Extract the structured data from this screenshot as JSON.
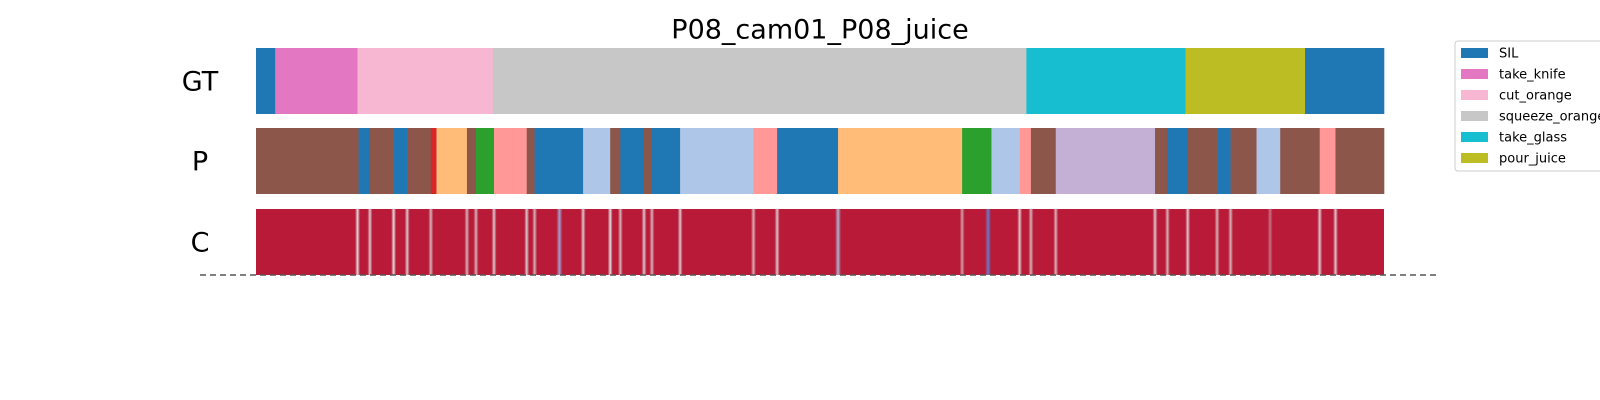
{
  "chart_data": {
    "type": "segmentation",
    "title": "P08_cam01_P08_juice",
    "xlim": [
      0,
      100
    ],
    "legend": [
      {
        "name": "SIL",
        "color": "#1f77b4"
      },
      {
        "name": "take_knife",
        "color": "#e377c2"
      },
      {
        "name": "cut_orange",
        "color": "#f7b6d2"
      },
      {
        "name": "squeeze_orange",
        "color": "#c7c7c7"
      },
      {
        "name": "take_glass",
        "color": "#17becf"
      },
      {
        "name": "pour_juice",
        "color": "#bcbd22"
      }
    ],
    "rows": [
      {
        "label": "GT",
        "segments": [
          {
            "start": 0,
            "end": 1.7,
            "color": "#1f77b4"
          },
          {
            "start": 1.7,
            "end": 9.0,
            "color": "#e377c2"
          },
          {
            "start": 9.0,
            "end": 21.0,
            "color": "#f7b6d2"
          },
          {
            "start": 21.0,
            "end": 68.3,
            "color": "#c7c7c7"
          },
          {
            "start": 68.3,
            "end": 82.4,
            "color": "#17becf"
          },
          {
            "start": 82.4,
            "end": 93.0,
            "color": "#bcbd22"
          },
          {
            "start": 93.0,
            "end": 100,
            "color": "#1f77b4"
          }
        ]
      },
      {
        "label": "P",
        "segments": [
          {
            "start": 0,
            "end": 9.1,
            "color": "#8c564b"
          },
          {
            "start": 9.1,
            "end": 10.1,
            "color": "#1f77b4"
          },
          {
            "start": 10.1,
            "end": 12.2,
            "color": "#8c564b"
          },
          {
            "start": 12.2,
            "end": 13.4,
            "color": "#1f77b4"
          },
          {
            "start": 13.4,
            "end": 15.5,
            "color": "#8c564b"
          },
          {
            "start": 15.5,
            "end": 16.0,
            "color": "#d62728"
          },
          {
            "start": 16.0,
            "end": 18.7,
            "color": "#ffbb78"
          },
          {
            "start": 18.7,
            "end": 19.5,
            "color": "#8c564b"
          },
          {
            "start": 19.5,
            "end": 21.1,
            "color": "#2ca02c"
          },
          {
            "start": 21.1,
            "end": 24.0,
            "color": "#ff9896"
          },
          {
            "start": 24.0,
            "end": 24.7,
            "color": "#8c564b"
          },
          {
            "start": 24.7,
            "end": 29.0,
            "color": "#1f77b4"
          },
          {
            "start": 29.0,
            "end": 31.4,
            "color": "#aec7e8"
          },
          {
            "start": 31.4,
            "end": 32.3,
            "color": "#8c564b"
          },
          {
            "start": 32.3,
            "end": 34.4,
            "color": "#1f77b4"
          },
          {
            "start": 34.4,
            "end": 35.1,
            "color": "#8c564b"
          },
          {
            "start": 35.1,
            "end": 37.6,
            "color": "#1f77b4"
          },
          {
            "start": 37.6,
            "end": 44.1,
            "color": "#aec7e8"
          },
          {
            "start": 44.1,
            "end": 46.2,
            "color": "#ff9896"
          },
          {
            "start": 46.2,
            "end": 51.6,
            "color": "#1f77b4"
          },
          {
            "start": 51.6,
            "end": 62.6,
            "color": "#ffbb78"
          },
          {
            "start": 62.6,
            "end": 65.2,
            "color": "#2ca02c"
          },
          {
            "start": 65.2,
            "end": 67.7,
            "color": "#aec7e8"
          },
          {
            "start": 67.7,
            "end": 68.7,
            "color": "#ff9896"
          },
          {
            "start": 68.7,
            "end": 70.9,
            "color": "#8c564b"
          },
          {
            "start": 70.9,
            "end": 79.7,
            "color": "#c5b0d5"
          },
          {
            "start": 79.7,
            "end": 80.8,
            "color": "#8c564b"
          },
          {
            "start": 80.8,
            "end": 82.6,
            "color": "#1f77b4"
          },
          {
            "start": 82.6,
            "end": 85.2,
            "color": "#8c564b"
          },
          {
            "start": 85.2,
            "end": 86.4,
            "color": "#1f77b4"
          },
          {
            "start": 86.4,
            "end": 88.7,
            "color": "#8c564b"
          },
          {
            "start": 88.7,
            "end": 90.8,
            "color": "#aec7e8"
          },
          {
            "start": 90.8,
            "end": 94.3,
            "color": "#8c564b"
          },
          {
            "start": 94.3,
            "end": 95.7,
            "color": "#ff9896"
          },
          {
            "start": 95.7,
            "end": 100,
            "color": "#8c564b"
          }
        ]
      },
      {
        "label": "C",
        "base": 0.95,
        "x": [
          9.0,
          10.1,
          12.2,
          13.4,
          15.5,
          18.7,
          19.5,
          21.1,
          24.0,
          24.7,
          26.9,
          29.0,
          31.4,
          32.3,
          34.4,
          35.1,
          37.6,
          44.1,
          46.2,
          51.6,
          62.6,
          64.9,
          67.7,
          68.7,
          70.9,
          79.7,
          80.8,
          82.6,
          85.2,
          86.4,
          89.9,
          94.3,
          95.7
        ],
        "values": [
          0.5,
          0.55,
          0.5,
          0.55,
          0.6,
          0.6,
          0.6,
          0.55,
          0.55,
          0.6,
          0.3,
          0.55,
          0.5,
          0.6,
          0.55,
          0.6,
          0.55,
          0.6,
          0.55,
          0.35,
          0.65,
          0.15,
          0.55,
          0.6,
          0.6,
          0.55,
          0.6,
          0.55,
          0.6,
          0.6,
          0.75,
          0.55,
          0.55
        ]
      }
    ]
  }
}
